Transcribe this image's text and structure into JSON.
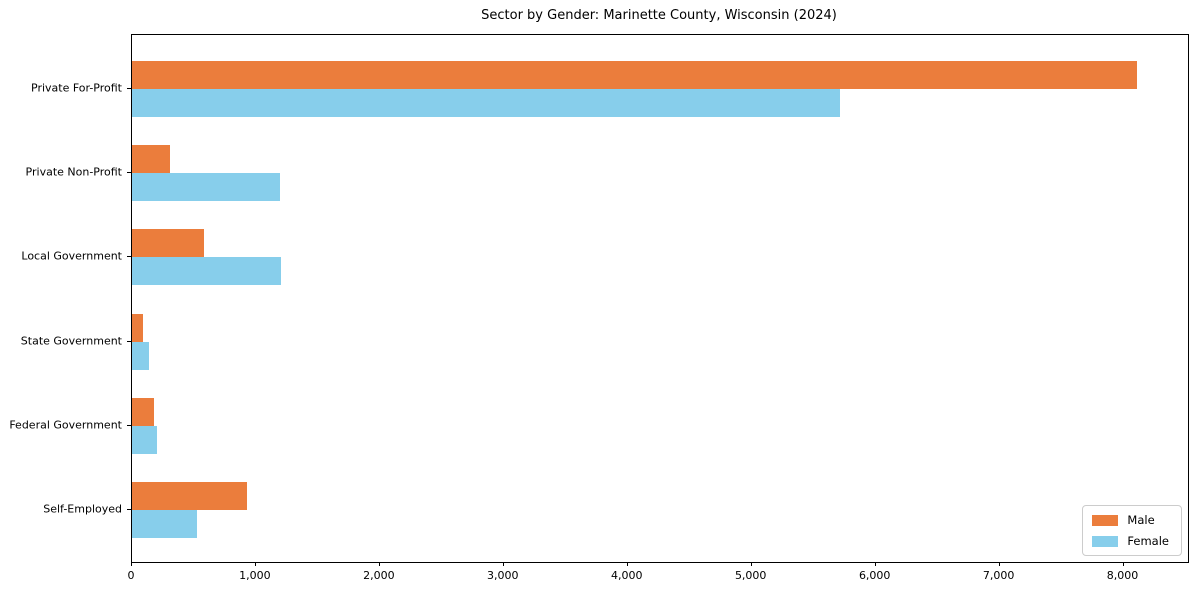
{
  "title": "Sector by Gender: Marinette County, Wisconsin (2024)",
  "legend": {
    "items": [
      {
        "label": "Male",
        "color": "#eb7d3c"
      },
      {
        "label": "Female",
        "color": "#87ceeb"
      }
    ]
  },
  "chart_data": {
    "type": "bar",
    "orientation": "horizontal",
    "title": "Sector by Gender: Marinette County, Wisconsin (2024)",
    "categories": [
      "Private For-Profit",
      "Private Non-Profit",
      "Local Government",
      "State Government",
      "Federal Government",
      "Self-Employed"
    ],
    "series": [
      {
        "name": "Male",
        "color": "#eb7d3c",
        "values": [
          8105,
          310,
          580,
          90,
          180,
          930
        ]
      },
      {
        "name": "Female",
        "color": "#87ceeb",
        "values": [
          5715,
          1190,
          1200,
          140,
          200,
          525
        ]
      }
    ],
    "xlabel": "",
    "ylabel": "",
    "xlim": [
      0,
      8520
    ],
    "xticks": [
      0,
      1000,
      2000,
      3000,
      4000,
      5000,
      6000,
      7000,
      8000
    ],
    "xtick_labels": [
      "0",
      "1,000",
      "2,000",
      "3,000",
      "4,000",
      "5,000",
      "6,000",
      "7,000",
      "8,000"
    ],
    "legend_position": "lower right",
    "grid": false,
    "background": "#ffffff",
    "axis_color": "#000000"
  }
}
